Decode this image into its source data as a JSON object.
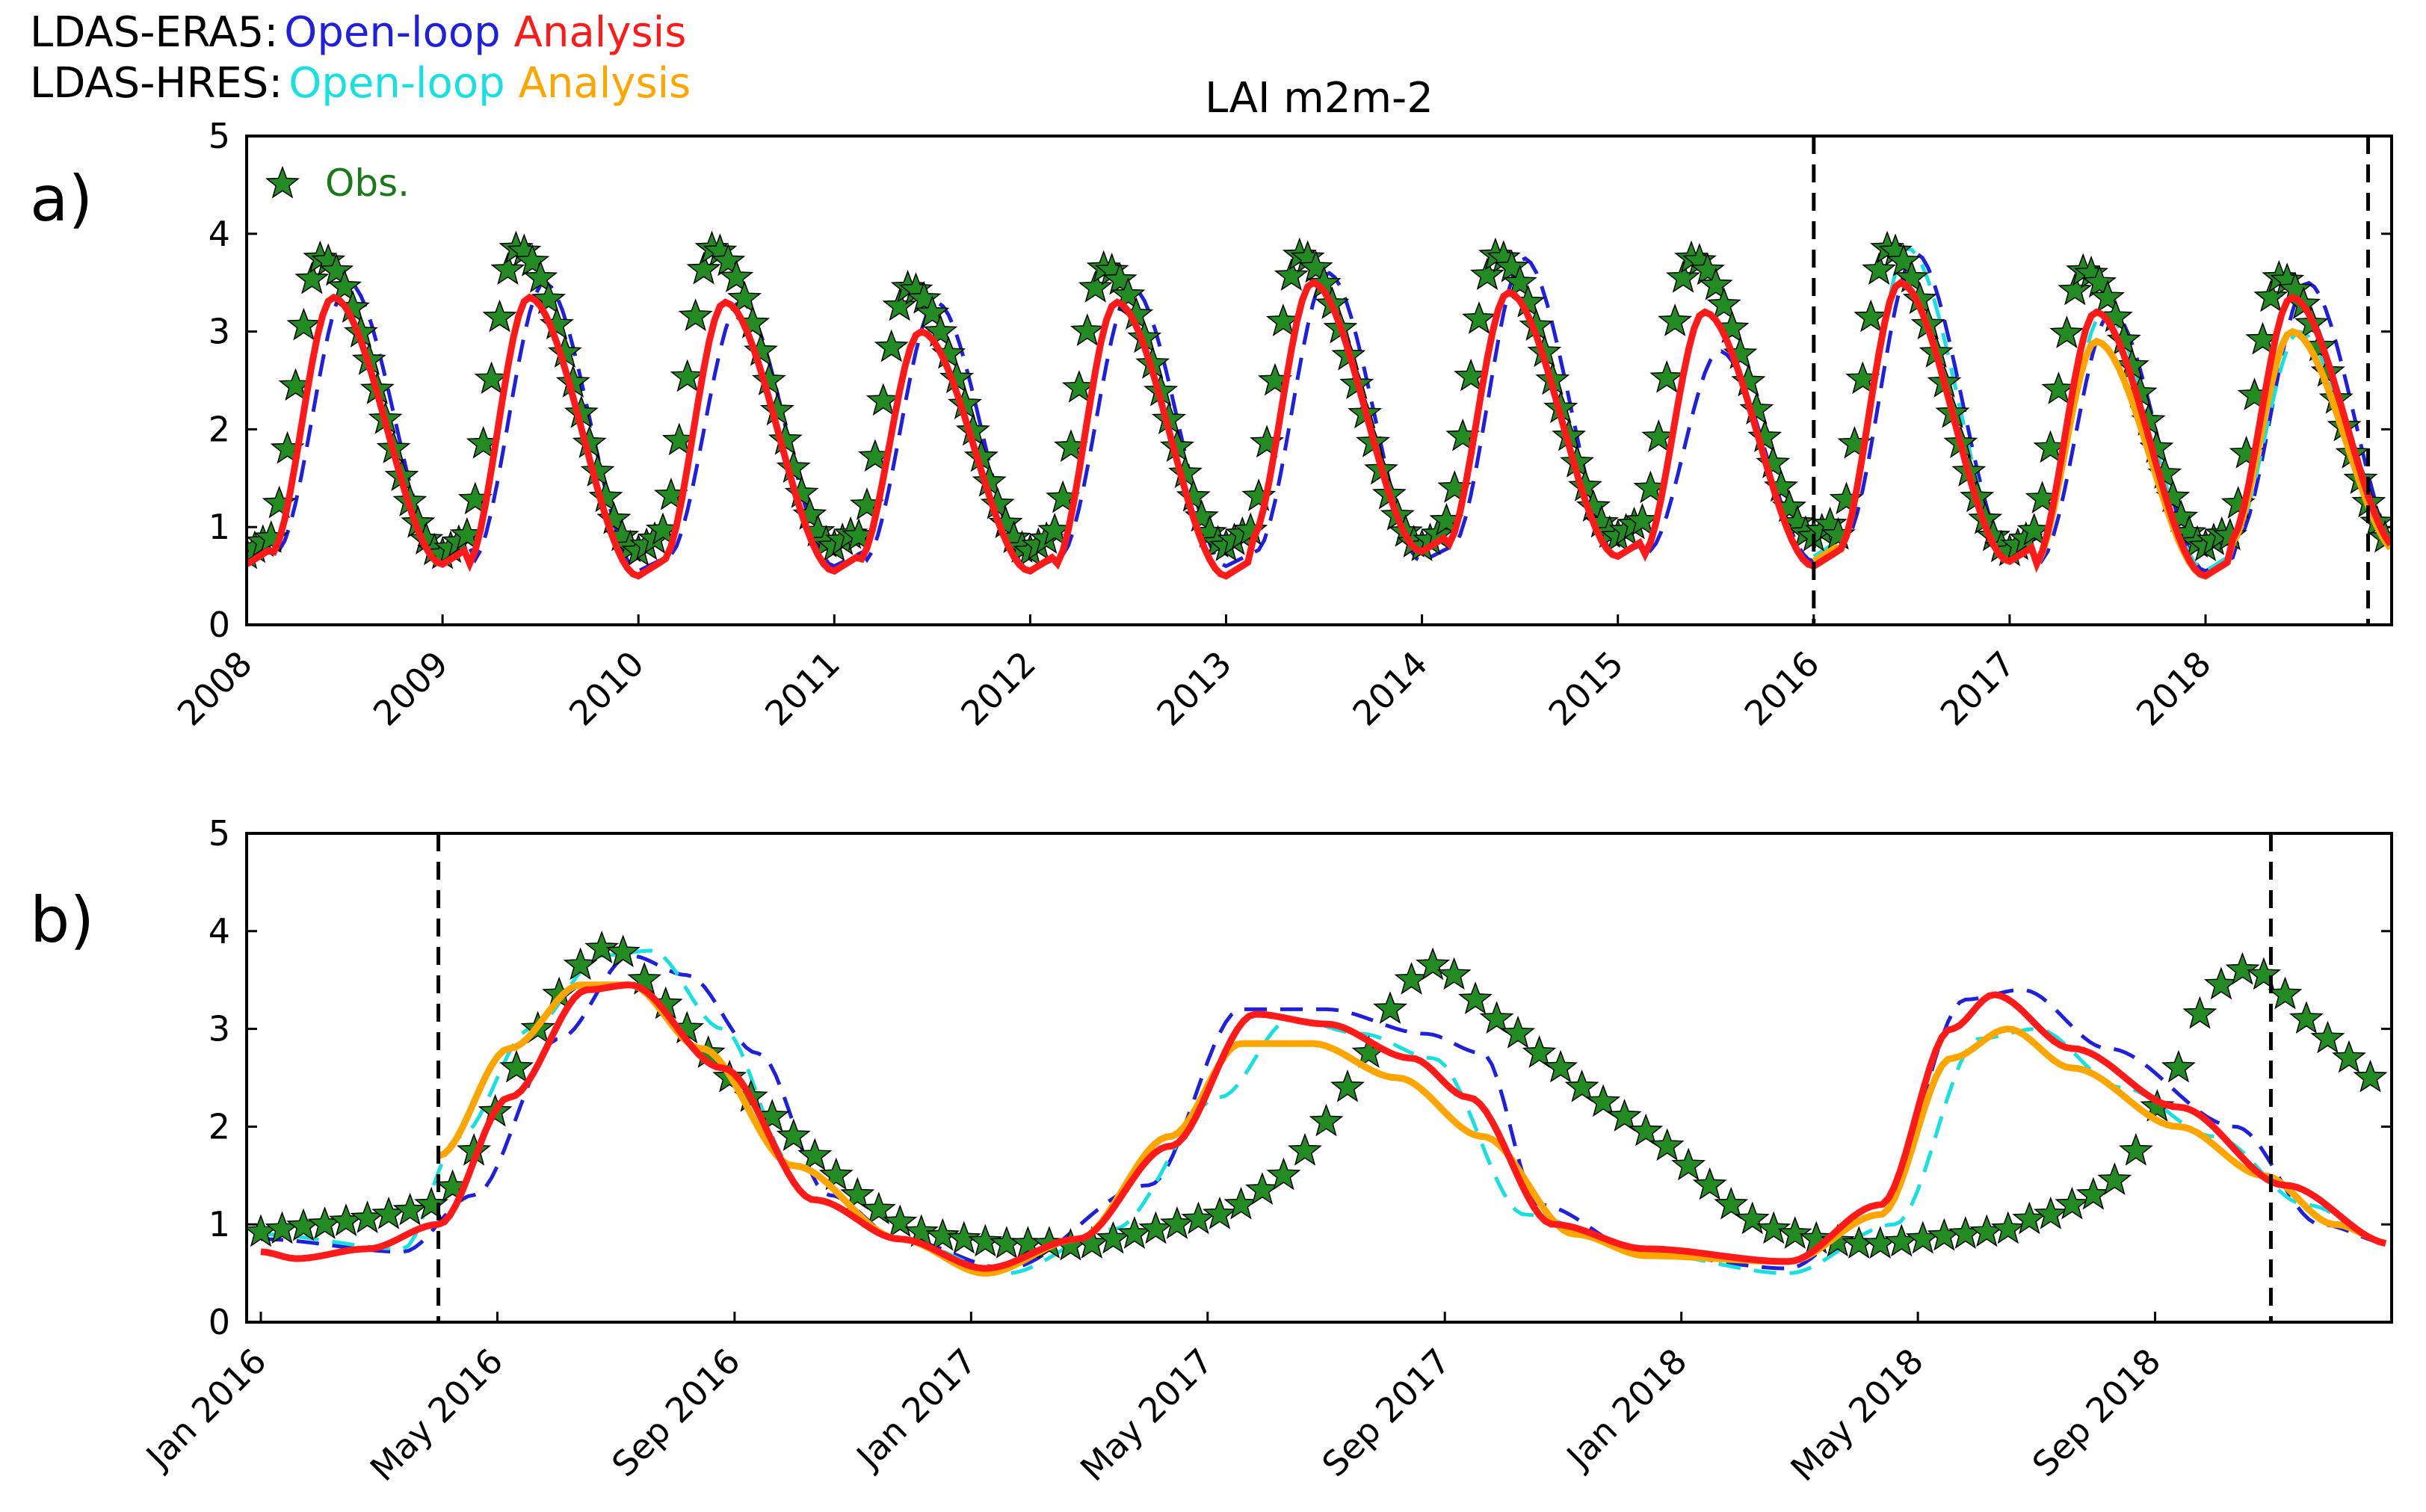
{
  "legend": {
    "line1": {
      "prefix": "LDAS-ERA5:",
      "openloop_label": "Open-loop",
      "analysis_label": "Analysis"
    },
    "line2": {
      "prefix": "LDAS-HRES:",
      "openloop_label": "Open-loop",
      "analysis_label": "Analysis"
    },
    "obs_label": "Obs."
  },
  "colors": {
    "era5_openloop": "#1f1fe0",
    "era5_analysis": "#ff1a1a",
    "hres_openloop": "#17e0e0",
    "hres_analysis": "#ffa500",
    "obs_fill": "#228b22",
    "obs_text": "#1a7a1a"
  },
  "chart_data": [
    {
      "panel_label": "a)",
      "title": "LAI m2m-2",
      "type": "line",
      "xlim": [
        2008.0,
        2018.95
      ],
      "ylim": [
        0,
        5
      ],
      "yticks": [
        "0",
        "1",
        "2",
        "3",
        "4",
        "5"
      ],
      "xticks": [
        "2008",
        "2009",
        "2010",
        "2011",
        "2012",
        "2013",
        "2014",
        "2015",
        "2016",
        "2017",
        "2018"
      ],
      "vlines": [
        2016.0,
        2018.83
      ],
      "obs_peaks": [
        3.75,
        3.85,
        3.85,
        3.45,
        3.65,
        3.78,
        3.78,
        3.75,
        3.85,
        3.62,
        3.55
      ],
      "obs_minima": [
        0.72,
        0.75,
        0.8,
        0.75,
        0.8,
        0.8,
        0.9,
        0.9,
        0.75,
        0.8,
        0.75
      ],
      "era5_analysis_peaks": [
        3.35,
        3.35,
        3.3,
        3.0,
        3.3,
        3.5,
        3.4,
        3.2,
        3.5,
        3.2,
        3.35
      ],
      "era5_analysis_minima": [
        0.62,
        0.5,
        0.55,
        0.55,
        0.5,
        0.75,
        0.7,
        0.6,
        0.65,
        0.5,
        0.75
      ],
      "era5_openloop_peaks": [
        3.5,
        3.5,
        3.3,
        3.3,
        3.45,
        3.6,
        3.75,
        2.8,
        3.8,
        3.2,
        3.5
      ],
      "era5_openloop_minima": [
        0.65,
        0.55,
        0.6,
        0.55,
        0.6,
        0.65,
        0.7,
        0.65,
        0.75,
        0.55,
        0.75
      ],
      "hres_openloop_peaks": [
        3.85,
        3.2,
        3.0
      ],
      "hres_analysis_peaks": [
        3.5,
        2.9,
        3.0
      ],
      "series": [
        {
          "name": "LDAS-ERA5 Open-loop",
          "style": "dashed"
        },
        {
          "name": "LDAS-ERA5 Analysis",
          "style": "solid"
        },
        {
          "name": "LDAS-HRES Open-loop",
          "style": "dashed",
          "period": "2016-2018"
        },
        {
          "name": "LDAS-HRES Analysis",
          "style": "solid",
          "period": "2016-2018"
        },
        {
          "name": "Obs.",
          "style": "star-markers"
        }
      ]
    },
    {
      "panel_label": "b)",
      "type": "line",
      "xlim": [
        2015.98,
        2019.0
      ],
      "ylim": [
        0,
        5
      ],
      "yticks": [
        "0",
        "1",
        "2",
        "3",
        "4",
        "5"
      ],
      "xticks": [
        "Jan 2016",
        "May 2016",
        "Sep 2016",
        "Jan 2017",
        "May 2017",
        "Sep 2017",
        "Jan 2018",
        "May 2018",
        "Sep 2018"
      ],
      "xtick_values": [
        2016.0,
        2016.333,
        2016.667,
        2017.0,
        2017.333,
        2017.667,
        2018.0,
        2018.333,
        2018.667
      ],
      "vlines": [
        2016.25,
        2018.83
      ],
      "obs": {
        "x": [
          2016.0,
          2016.03,
          2016.06,
          2016.09,
          2016.12,
          2016.15,
          2016.18,
          2016.21,
          2016.24,
          2016.27,
          2016.3,
          2016.33,
          2016.36,
          2016.39,
          2016.42,
          2016.45,
          2016.48,
          2016.51,
          2016.54,
          2016.57,
          2016.6,
          2016.63,
          2016.66,
          2016.69,
          2016.72,
          2016.75,
          2016.78,
          2016.81,
          2016.84,
          2016.87,
          2016.9,
          2016.93,
          2016.96,
          2016.99,
          2017.02,
          2017.05,
          2017.08,
          2017.11,
          2017.14,
          2017.17,
          2017.2,
          2017.23,
          2017.26,
          2017.29,
          2017.32,
          2017.35,
          2017.38,
          2017.41,
          2017.44,
          2017.47,
          2017.5,
          2017.53,
          2017.56,
          2017.59,
          2017.62,
          2017.65,
          2017.68,
          2017.71,
          2017.74,
          2017.77,
          2017.8,
          2017.83,
          2017.86,
          2017.89,
          2017.92,
          2017.95,
          2017.98,
          2018.01,
          2018.04,
          2018.07,
          2018.1,
          2018.13,
          2018.16,
          2018.19,
          2018.22,
          2018.25,
          2018.28,
          2018.31,
          2018.34,
          2018.37,
          2018.4,
          2018.43,
          2018.46,
          2018.49,
          2018.52,
          2018.55,
          2018.58,
          2018.61,
          2018.64,
          2018.67,
          2018.7,
          2018.73,
          2018.76,
          2018.79,
          2018.82,
          2018.85,
          2018.88,
          2018.91,
          2018.94,
          2018.97
        ],
        "y": [
          0.92,
          0.95,
          0.98,
          1.0,
          1.03,
          1.06,
          1.1,
          1.14,
          1.2,
          1.38,
          1.75,
          2.15,
          2.6,
          3.0,
          3.35,
          3.65,
          3.82,
          3.78,
          3.5,
          3.25,
          3.0,
          2.75,
          2.5,
          2.3,
          2.1,
          1.9,
          1.7,
          1.5,
          1.3,
          1.15,
          1.02,
          0.92,
          0.88,
          0.85,
          0.82,
          0.8,
          0.8,
          0.8,
          0.78,
          0.8,
          0.85,
          0.9,
          0.95,
          1.0,
          1.05,
          1.1,
          1.2,
          1.35,
          1.5,
          1.75,
          2.05,
          2.4,
          2.75,
          3.2,
          3.5,
          3.65,
          3.55,
          3.3,
          3.1,
          2.95,
          2.75,
          2.6,
          2.4,
          2.25,
          2.1,
          1.95,
          1.8,
          1.6,
          1.4,
          1.2,
          1.05,
          0.95,
          0.9,
          0.85,
          0.82,
          0.8,
          0.8,
          0.82,
          0.85,
          0.88,
          0.9,
          0.92,
          0.95,
          1.05,
          1.1,
          1.2,
          1.3,
          1.45,
          1.75,
          2.2,
          2.6,
          3.15,
          3.45,
          3.6,
          3.55,
          3.35,
          3.1,
          2.9,
          2.7,
          2.5
        ]
      },
      "series": [
        {
          "name": "LDAS-ERA5 Open-loop",
          "style": "dashed"
        },
        {
          "name": "LDAS-ERA5 Analysis",
          "style": "solid"
        },
        {
          "name": "LDAS-HRES Open-loop",
          "style": "dashed"
        },
        {
          "name": "LDAS-HRES Analysis",
          "style": "solid"
        },
        {
          "name": "Obs.",
          "style": "star-markers"
        }
      ]
    }
  ]
}
